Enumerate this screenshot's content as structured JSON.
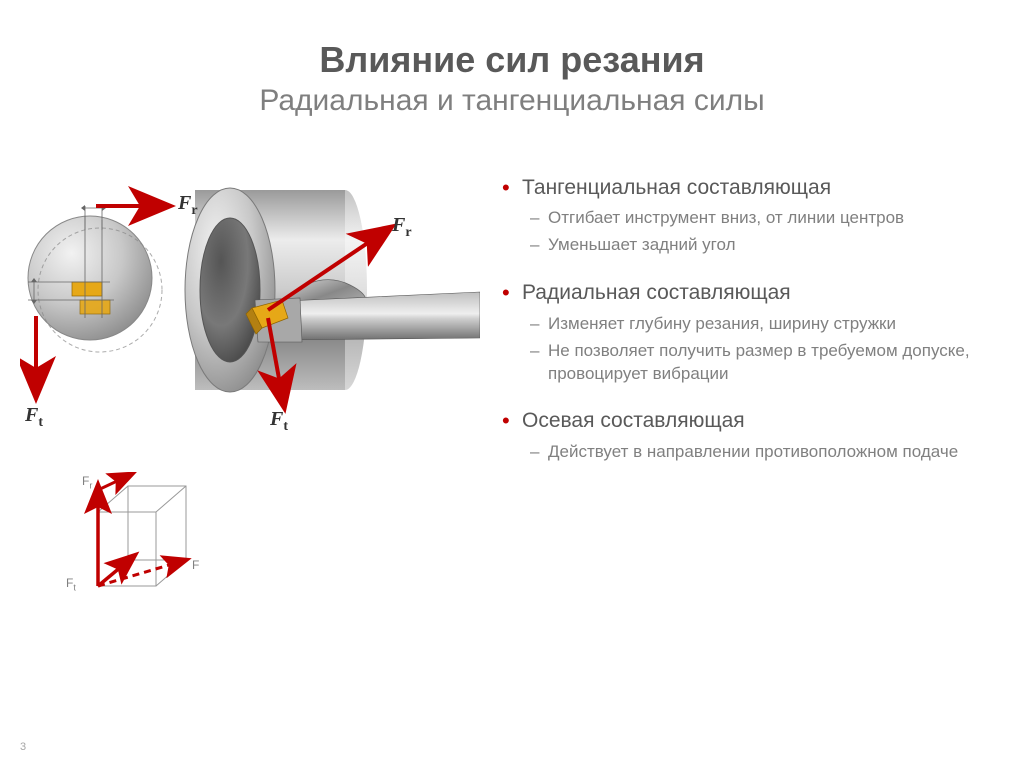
{
  "title": {
    "main": "Влияние сил резания",
    "sub": "Радиальная и тангенциальная силы"
  },
  "bullets": [
    {
      "head": "Тангенциальная составляющая",
      "subs": [
        "Отгибает инструмент вниз, от линии центров",
        "Уменьшает задний угол"
      ]
    },
    {
      "head": "Радиальная составляющая",
      "subs": [
        "Изменяет глубину резания, ширину стружки",
        "Не позволяет получить размер в требуемом допуске, провоцирует вибрации"
      ]
    },
    {
      "head": "Осевая составляющая",
      "subs": [
        "Действует в направлении противоположном подаче"
      ]
    }
  ],
  "diagram": {
    "colors": {
      "arrow": "#c00000",
      "metal_light": "#e8e8e8",
      "metal_mid": "#b0b0b0",
      "metal_dark": "#6a6a6a",
      "insert": "#e6a817",
      "insert_dark": "#b38012",
      "label_text": "#333333",
      "dim_line": "#666666"
    },
    "labels": {
      "Fr": "Fr",
      "Ft": "Ft",
      "F": "F"
    }
  },
  "page_number": "3"
}
